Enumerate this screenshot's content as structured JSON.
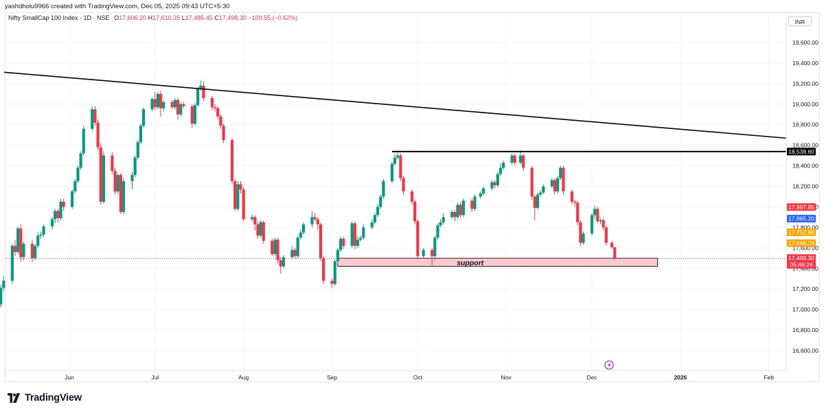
{
  "header": {
    "caption": "yashdholu9966 created with TradingView.com, Dec 05, 2025 09:43 UTC+5:30"
  },
  "legend": {
    "symbol": "Nifty SmallCap 100 Index · 1D · NSE",
    "o_label": "O",
    "o_value": "17,606.20",
    "h_label": "H",
    "h_value": "17,610.35",
    "l_label": "L",
    "l_value": "17,485.45",
    "c_label": "C",
    "c_value": "17,498.30",
    "change": "−109.55 (−0.62%)"
  },
  "currency_button": "INR",
  "footer": {
    "brand": "TradingView"
  },
  "colors": {
    "up": "#089981",
    "down": "#f23645",
    "blue": "#2962ff",
    "orange": "#f7a600",
    "support_fill": "#f8c9cd",
    "support_text": "#131722",
    "axis_text": "#131722"
  },
  "chart_data": {
    "type": "candlestick",
    "y_ticks": [
      "19,600.00",
      "19,400.00",
      "19,200.00",
      "19,000.00",
      "18,800.00",
      "18,600.00",
      "18,400.00",
      "18,200.00",
      "18,000.00",
      "17,800.00",
      "17,600.00",
      "17,400.00",
      "17,200.00",
      "17,000.00",
      "16,800.00",
      "16,600.00"
    ],
    "y_tick_values": [
      19600,
      19400,
      19200,
      19000,
      18800,
      18600,
      18400,
      18200,
      18000,
      17800,
      17600,
      17400,
      17200,
      17000,
      16800,
      16600
    ],
    "x_ticks": [
      {
        "label": "Jun",
        "date": "2025-06-01"
      },
      {
        "label": "Jul",
        "date": "2025-07-01"
      },
      {
        "label": "Aug",
        "date": "2025-08-01"
      },
      {
        "label": "Sep",
        "date": "2025-09-01"
      },
      {
        "label": "Oct",
        "date": "2025-10-01"
      },
      {
        "label": "Nov",
        "date": "2025-11-01"
      },
      {
        "label": "Dec",
        "date": "2025-12-01"
      },
      {
        "label": "2026",
        "date": "2026-01-01"
      },
      {
        "label": "Feb",
        "date": "2026-02-01"
      }
    ],
    "price_labels": [
      {
        "text": "18,538.60",
        "value": 18538.6,
        "color": "#000000"
      },
      {
        "text": "17,997.85",
        "value": 17997.85,
        "color": "#f23645"
      },
      {
        "text": "17,885.20",
        "value": 17885.2,
        "color": "#2962ff"
      },
      {
        "text": "17,752.88",
        "value": 17752.88,
        "color": "#f7a600"
      },
      {
        "text": "17,646.29",
        "value": 17646.29,
        "color": "#f7a600"
      },
      {
        "text": "17,498.30",
        "value": 17498.3,
        "color": "#f23645"
      }
    ],
    "countdown": "05:46:24",
    "last_price": 17498.3,
    "annotations": {
      "support_label": "support",
      "support_zone": {
        "from": "2025-09-03",
        "to": "2025-12-24",
        "top": 17500,
        "bottom": 17420
      },
      "resistance_line": {
        "from": "2025-09-22",
        "to": "2026-02-28",
        "value": 18538.6
      },
      "trend_line": {
        "from": "2025-05-01",
        "from_value": 19330,
        "to": "2026-02-28",
        "to_value": 18620
      }
    },
    "candles": [
      [
        "2025-05-05",
        16700,
        16650,
        16560,
        16720
      ],
      [
        "2025-05-06",
        16650,
        16930,
        16620,
        16960
      ],
      [
        "2025-05-07",
        16930,
        17050,
        16900,
        17080
      ],
      [
        "2025-05-08",
        17050,
        17210,
        17020,
        17240
      ],
      [
        "2025-05-09",
        17210,
        17280,
        17180,
        17330
      ],
      [
        "2025-05-12",
        17280,
        17620,
        17250,
        17640
      ],
      [
        "2025-05-13",
        17620,
        17560,
        17520,
        17680
      ],
      [
        "2025-05-14",
        17560,
        17790,
        17540,
        17810
      ],
      [
        "2025-05-15",
        17790,
        17510,
        17470,
        17830
      ],
      [
        "2025-05-16",
        17510,
        17640,
        17480,
        17660
      ],
      [
        "2025-05-19",
        17640,
        17500,
        17460,
        17680
      ],
      [
        "2025-05-20",
        17500,
        17620,
        17480,
        17640
      ],
      [
        "2025-05-21",
        17620,
        17720,
        17600,
        17750
      ],
      [
        "2025-05-22",
        17720,
        17730,
        17690,
        17760
      ],
      [
        "2025-05-23",
        17730,
        17810,
        17700,
        17830
      ],
      [
        "2025-05-26",
        17810,
        17880,
        17780,
        17900
      ],
      [
        "2025-05-27",
        17880,
        17960,
        17840,
        17980
      ],
      [
        "2025-05-28",
        17960,
        17890,
        17850,
        17980
      ],
      [
        "2025-05-29",
        17890,
        18050,
        17870,
        18080
      ],
      [
        "2025-05-30",
        18050,
        18000,
        17960,
        18080
      ],
      [
        "2025-06-02",
        18000,
        18150,
        17980,
        18170
      ],
      [
        "2025-06-03",
        18150,
        18250,
        18130,
        18270
      ],
      [
        "2025-06-04",
        18250,
        18380,
        18230,
        18400
      ],
      [
        "2025-06-05",
        18380,
        18520,
        18360,
        18540
      ],
      [
        "2025-06-06",
        18520,
        18760,
        18500,
        18790
      ],
      [
        "2025-06-09",
        18760,
        18950,
        18740,
        18980
      ],
      [
        "2025-06-10",
        18950,
        18820,
        18790,
        18980
      ],
      [
        "2025-06-11",
        18820,
        18580,
        18550,
        18850
      ],
      [
        "2025-06-12",
        18580,
        18050,
        18020,
        18620
      ],
      [
        "2025-06-13",
        18050,
        18500,
        18030,
        18540
      ],
      [
        "2025-06-16",
        18500,
        18350,
        18320,
        18530
      ],
      [
        "2025-06-17",
        18350,
        18150,
        18120,
        18380
      ],
      [
        "2025-06-18",
        18150,
        18310,
        18130,
        18330
      ],
      [
        "2025-06-19",
        18310,
        17950,
        17930,
        18330
      ],
      [
        "2025-06-20",
        17950,
        18250,
        17930,
        18280
      ],
      [
        "2025-06-23",
        18250,
        18310,
        18170,
        18340
      ],
      [
        "2025-06-24",
        18310,
        18480,
        18290,
        18500
      ],
      [
        "2025-06-25",
        18480,
        18630,
        18460,
        18650
      ],
      [
        "2025-06-26",
        18630,
        18790,
        18610,
        18810
      ],
      [
        "2025-06-27",
        18790,
        18950,
        18770,
        18970
      ],
      [
        "2025-06-30",
        18950,
        19050,
        18930,
        19070
      ],
      [
        "2025-07-01",
        19050,
        18970,
        18940,
        19120
      ],
      [
        "2025-07-02",
        18970,
        19100,
        18950,
        19120
      ],
      [
        "2025-07-03",
        19100,
        18960,
        18880,
        19130
      ],
      [
        "2025-07-04",
        18960,
        19020,
        18930,
        19040
      ],
      [
        "2025-07-07",
        19020,
        18970,
        18950,
        19040
      ],
      [
        "2025-07-08",
        18970,
        19040,
        18950,
        19060
      ],
      [
        "2025-07-09",
        19040,
        18900,
        18850,
        19060
      ],
      [
        "2025-07-10",
        18900,
        19000,
        18880,
        19020
      ],
      [
        "2025-07-11",
        19000,
        18980,
        18960,
        19020
      ],
      [
        "2025-07-14",
        18980,
        18810,
        18770,
        19000
      ],
      [
        "2025-07-15",
        18810,
        18990,
        18790,
        19010
      ],
      [
        "2025-07-16",
        18990,
        19150,
        18970,
        19170
      ],
      [
        "2025-07-17",
        19150,
        19180,
        19130,
        19230
      ],
      [
        "2025-07-18",
        19180,
        19060,
        19030,
        19220
      ],
      [
        "2025-07-21",
        19060,
        18970,
        18940,
        19080
      ],
      [
        "2025-07-22",
        18970,
        18960,
        18930,
        19000
      ],
      [
        "2025-07-23",
        18960,
        18880,
        18850,
        18980
      ],
      [
        "2025-07-24",
        18880,
        18790,
        18760,
        18900
      ],
      [
        "2025-07-25",
        18790,
        18650,
        18620,
        18810
      ],
      [
        "2025-07-28",
        18650,
        18250,
        18220,
        18670
      ],
      [
        "2025-07-29",
        18250,
        17980,
        17960,
        18270
      ],
      [
        "2025-07-30",
        17980,
        18220,
        17960,
        18250
      ],
      [
        "2025-07-31",
        18220,
        18170,
        18130,
        18250
      ],
      [
        "2025-08-01",
        18170,
        17880,
        17860,
        18190
      ],
      [
        "2025-08-04",
        17880,
        17900,
        17860,
        17930
      ],
      [
        "2025-08-05",
        17900,
        17830,
        17770,
        17920
      ],
      [
        "2025-08-06",
        17830,
        17720,
        17690,
        17850
      ],
      [
        "2025-08-07",
        17720,
        17850,
        17700,
        17870
      ],
      [
        "2025-08-08",
        17850,
        17670,
        17640,
        17870
      ],
      [
        "2025-08-11",
        17670,
        17540,
        17520,
        17690
      ],
      [
        "2025-08-12",
        17540,
        17680,
        17520,
        17700
      ],
      [
        "2025-08-13",
        17680,
        17480,
        17450,
        17700
      ],
      [
        "2025-08-14",
        17480,
        17420,
        17350,
        17510
      ],
      [
        "2025-08-15",
        17420,
        17510,
        17400,
        17530
      ],
      [
        "2025-08-18",
        17510,
        17580,
        17490,
        17620
      ],
      [
        "2025-08-19",
        17580,
        17520,
        17500,
        17600
      ],
      [
        "2025-08-20",
        17520,
        17700,
        17500,
        17720
      ],
      [
        "2025-08-21",
        17700,
        17750,
        17680,
        17780
      ],
      [
        "2025-08-22",
        17750,
        17830,
        17730,
        17850
      ],
      [
        "2025-08-25",
        17830,
        17900,
        17800,
        17960
      ],
      [
        "2025-08-26",
        17900,
        17880,
        17860,
        17940
      ],
      [
        "2025-08-27",
        17880,
        17830,
        17780,
        17900
      ],
      [
        "2025-08-28",
        17830,
        17500,
        17470,
        17850
      ],
      [
        "2025-08-29",
        17500,
        17280,
        17250,
        17520
      ],
      [
        "2025-09-01",
        17280,
        17250,
        17210,
        17300
      ],
      [
        "2025-09-02",
        17250,
        17470,
        17230,
        17490
      ],
      [
        "2025-09-03",
        17470,
        17580,
        17450,
        17600
      ],
      [
        "2025-09-04",
        17580,
        17690,
        17560,
        17710
      ],
      [
        "2025-09-05",
        17690,
        17620,
        17590,
        17710
      ],
      [
        "2025-09-08",
        17620,
        17840,
        17600,
        17860
      ],
      [
        "2025-09-09",
        17840,
        17620,
        17590,
        17860
      ],
      [
        "2025-09-10",
        17620,
        17680,
        17600,
        17720
      ],
      [
        "2025-09-11",
        17680,
        17700,
        17660,
        17720
      ],
      [
        "2025-09-12",
        17700,
        17800,
        17680,
        17830
      ],
      [
        "2025-09-15",
        17800,
        17850,
        17780,
        17880
      ],
      [
        "2025-09-16",
        17850,
        17920,
        17830,
        17940
      ],
      [
        "2025-09-17",
        17920,
        18000,
        17900,
        18030
      ],
      [
        "2025-09-18",
        18000,
        18100,
        17980,
        18120
      ],
      [
        "2025-09-19",
        18100,
        18250,
        18080,
        18270
      ],
      [
        "2025-09-22",
        18250,
        18420,
        18230,
        18440
      ],
      [
        "2025-09-23",
        18420,
        18480,
        18400,
        18520
      ],
      [
        "2025-09-24",
        18480,
        18500,
        18460,
        18540
      ],
      [
        "2025-09-25",
        18500,
        18280,
        18250,
        18520
      ],
      [
        "2025-09-26",
        18280,
        18150,
        18120,
        18300
      ],
      [
        "2025-09-29",
        18150,
        18050,
        18020,
        18170
      ],
      [
        "2025-09-30",
        18050,
        17860,
        17830,
        18070
      ],
      [
        "2025-10-01",
        17860,
        17520,
        17490,
        17880
      ],
      [
        "2025-10-03",
        17520,
        17580,
        17500,
        17600
      ],
      [
        "2025-10-06",
        17580,
        17520,
        17430,
        17600
      ],
      [
        "2025-10-07",
        17520,
        17700,
        17480,
        17720
      ],
      [
        "2025-10-08",
        17700,
        17820,
        17680,
        17840
      ],
      [
        "2025-10-09",
        17820,
        17850,
        17800,
        17880
      ],
      [
        "2025-10-10",
        17850,
        17900,
        17830,
        17940
      ],
      [
        "2025-10-13",
        17900,
        17950,
        17880,
        17970
      ],
      [
        "2025-10-14",
        17950,
        17900,
        17860,
        17970
      ],
      [
        "2025-10-15",
        17900,
        18020,
        17880,
        18040
      ],
      [
        "2025-10-16",
        18020,
        17920,
        17890,
        18050
      ],
      [
        "2025-10-17",
        17920,
        18060,
        17900,
        18080
      ],
      [
        "2025-10-20",
        18060,
        17980,
        17950,
        18080
      ],
      [
        "2025-10-21",
        17980,
        18100,
        17960,
        18120
      ],
      [
        "2025-10-23",
        18100,
        18130,
        18080,
        18150
      ],
      [
        "2025-10-24",
        18130,
        18180,
        18110,
        18200
      ],
      [
        "2025-10-27",
        18180,
        18240,
        18160,
        18260
      ],
      [
        "2025-10-28",
        18240,
        18210,
        18180,
        18260
      ],
      [
        "2025-10-29",
        18210,
        18320,
        18190,
        18340
      ],
      [
        "2025-10-30",
        18320,
        18380,
        18300,
        18420
      ],
      [
        "2025-10-31",
        18380,
        18430,
        18360,
        18450
      ],
      [
        "2025-11-03",
        18430,
        18500,
        18410,
        18520
      ],
      [
        "2025-11-04",
        18500,
        18430,
        18400,
        18520
      ],
      [
        "2025-11-06",
        18430,
        18500,
        18410,
        18550
      ],
      [
        "2025-11-07",
        18500,
        18380,
        18350,
        18520
      ],
      [
        "2025-11-10",
        18380,
        18100,
        18070,
        18400
      ],
      [
        "2025-11-11",
        18100,
        17990,
        17870,
        18120
      ],
      [
        "2025-11-12",
        17990,
        18120,
        17970,
        18140
      ],
      [
        "2025-11-13",
        18120,
        18140,
        18100,
        18160
      ],
      [
        "2025-11-14",
        18140,
        18200,
        18120,
        18220
      ],
      [
        "2025-11-17",
        18200,
        18260,
        18180,
        18280
      ],
      [
        "2025-11-18",
        18260,
        18150,
        18120,
        18280
      ],
      [
        "2025-11-19",
        18150,
        18280,
        18130,
        18300
      ],
      [
        "2025-11-20",
        18280,
        18380,
        18260,
        18400
      ],
      [
        "2025-11-21",
        18380,
        18150,
        18120,
        18400
      ],
      [
        "2025-11-24",
        18150,
        18050,
        18020,
        18170
      ],
      [
        "2025-11-25",
        18050,
        18040,
        18000,
        18070
      ],
      [
        "2025-11-26",
        18040,
        17850,
        17820,
        18060
      ],
      [
        "2025-11-27",
        17850,
        17650,
        17620,
        17870
      ],
      [
        "2025-11-28",
        17650,
        17740,
        17630,
        17760
      ],
      [
        "2025-12-01",
        17740,
        17920,
        17720,
        17940
      ],
      [
        "2025-12-02",
        17920,
        17980,
        17880,
        18010
      ],
      [
        "2025-12-03",
        17980,
        17860,
        17840,
        18000
      ],
      [
        "2025-12-04",
        17860,
        17870,
        17830,
        17890
      ],
      [
        "2025-12-05",
        17870,
        17800,
        17770,
        17890
      ],
      [
        "2025-12-06",
        17800,
        17650,
        17620,
        17820
      ],
      [
        "2025-12-08",
        17650,
        17606,
        17590,
        17670
      ],
      [
        "2025-12-09",
        17606,
        17498,
        17485,
        17610
      ]
    ]
  }
}
